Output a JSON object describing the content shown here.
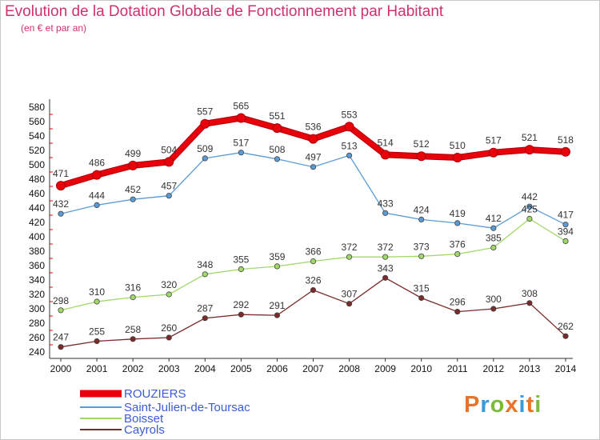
{
  "header": {
    "title": "Evolution de la Dotation Globale de Fonctionnement par Habitant",
    "subtitle": "(en € et par an)"
  },
  "logo": {
    "text": "Proxiti",
    "letter_colors": [
      "#e8742a",
      "#3a9ad9",
      "#7cbb3a",
      "#e8742a",
      "#3a9ad9",
      "#e8742a",
      "#7cbb3a"
    ]
  },
  "chart_data": {
    "type": "line",
    "x": [
      "2000",
      "2001",
      "2002",
      "2003",
      "2004",
      "2005",
      "2006",
      "2007",
      "2008",
      "2009",
      "2010",
      "2011",
      "2012",
      "2013",
      "2014"
    ],
    "ylim": [
      240,
      580
    ],
    "yticks": [
      240,
      260,
      280,
      300,
      320,
      340,
      360,
      380,
      400,
      420,
      440,
      460,
      480,
      500,
      520,
      540,
      560,
      580
    ],
    "grid": false,
    "legend": "bottom-left",
    "series": [
      {
        "name": "ROUZIERS",
        "color": "#e8000a",
        "values": [
          471,
          486,
          499,
          504,
          557,
          565,
          551,
          536,
          553,
          514,
          512,
          510,
          517,
          521,
          518
        ]
      },
      {
        "name": "Saint-Julien-de-Toursac",
        "color": "#5b9bd5",
        "values": [
          432,
          444,
          452,
          457,
          509,
          517,
          508,
          497,
          513,
          433,
          424,
          419,
          412,
          442,
          417
        ]
      },
      {
        "name": "Boisset",
        "color": "#a2d86a",
        "values": [
          298,
          310,
          316,
          320,
          348,
          355,
          359,
          366,
          372,
          372,
          373,
          376,
          385,
          425,
          394
        ]
      },
      {
        "name": "Cayrols",
        "color": "#7a2a2a",
        "values": [
          247,
          255,
          258,
          260,
          287,
          292,
          291,
          326,
          307,
          343,
          315,
          296,
          300,
          308,
          262
        ]
      }
    ]
  }
}
